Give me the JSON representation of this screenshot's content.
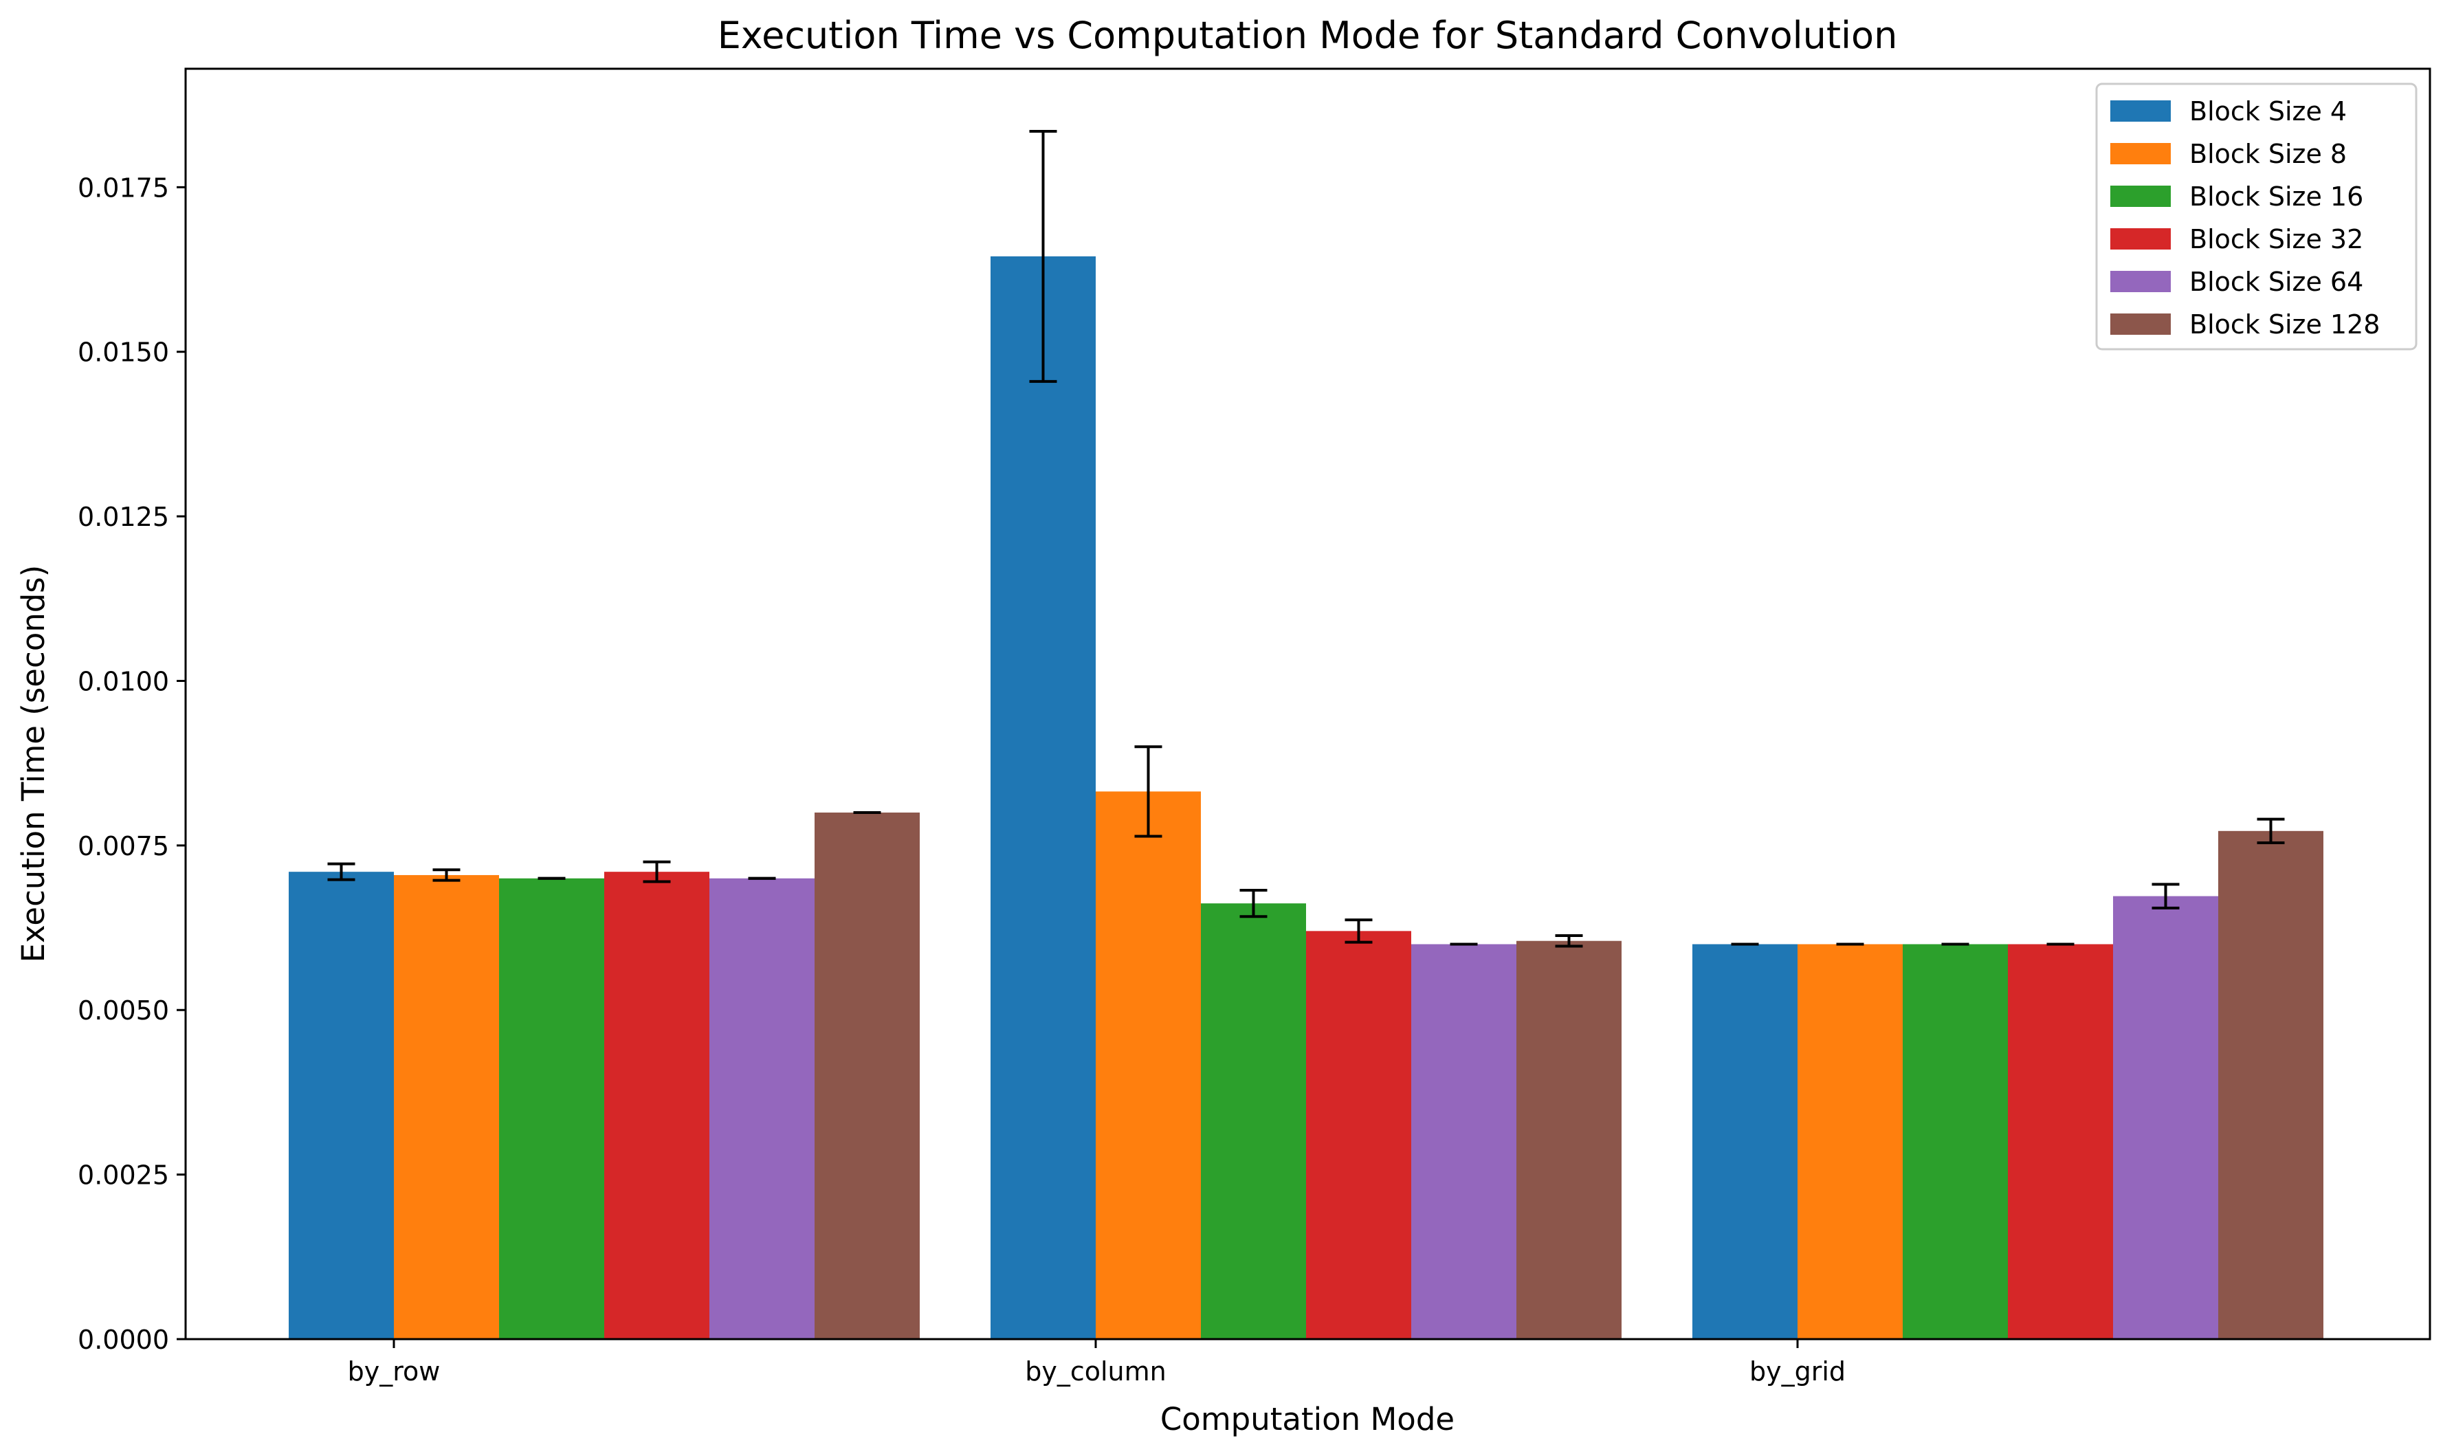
{
  "chart_data": {
    "type": "bar",
    "title": "Execution Time vs Computation Mode for Standard Convolution",
    "xlabel": "Computation Mode",
    "ylabel": "Execution Time (seconds)",
    "categories": [
      "by_row",
      "by_column",
      "by_grid"
    ],
    "ylim": [
      0,
      0.0193
    ],
    "yticks": [
      "0.0000",
      "0.0025",
      "0.0050",
      "0.0075",
      "0.0100",
      "0.0125",
      "0.0150",
      "0.0175"
    ],
    "legend_position": "top-right",
    "grid": false,
    "series": [
      {
        "name": "Block Size 4",
        "color": "#1f77b4",
        "values": [
          0.0071,
          0.01645,
          0.006
        ],
        "errors": [
          0.00012,
          0.0019,
          0.0
        ]
      },
      {
        "name": "Block Size 8",
        "color": "#ff7f0e",
        "values": [
          0.00705,
          0.00832,
          0.006
        ],
        "errors": [
          8e-05,
          0.00068,
          0.0
        ]
      },
      {
        "name": "Block Size 16",
        "color": "#2ca02c",
        "values": [
          0.007,
          0.00662,
          0.006
        ],
        "errors": [
          0.0,
          0.0002,
          0.0
        ]
      },
      {
        "name": "Block Size 32",
        "color": "#d62728",
        "values": [
          0.0071,
          0.0062,
          0.006
        ],
        "errors": [
          0.00015,
          0.00017,
          0.0
        ]
      },
      {
        "name": "Block Size 64",
        "color": "#9467bd",
        "values": [
          0.007,
          0.006,
          0.00673
        ],
        "errors": [
          0.0,
          0.0,
          0.00018
        ]
      },
      {
        "name": "Block Size 128",
        "color": "#8c564b",
        "values": [
          0.008,
          0.00605,
          0.00772
        ],
        "errors": [
          0.0,
          8e-05,
          0.00018
        ]
      }
    ]
  }
}
